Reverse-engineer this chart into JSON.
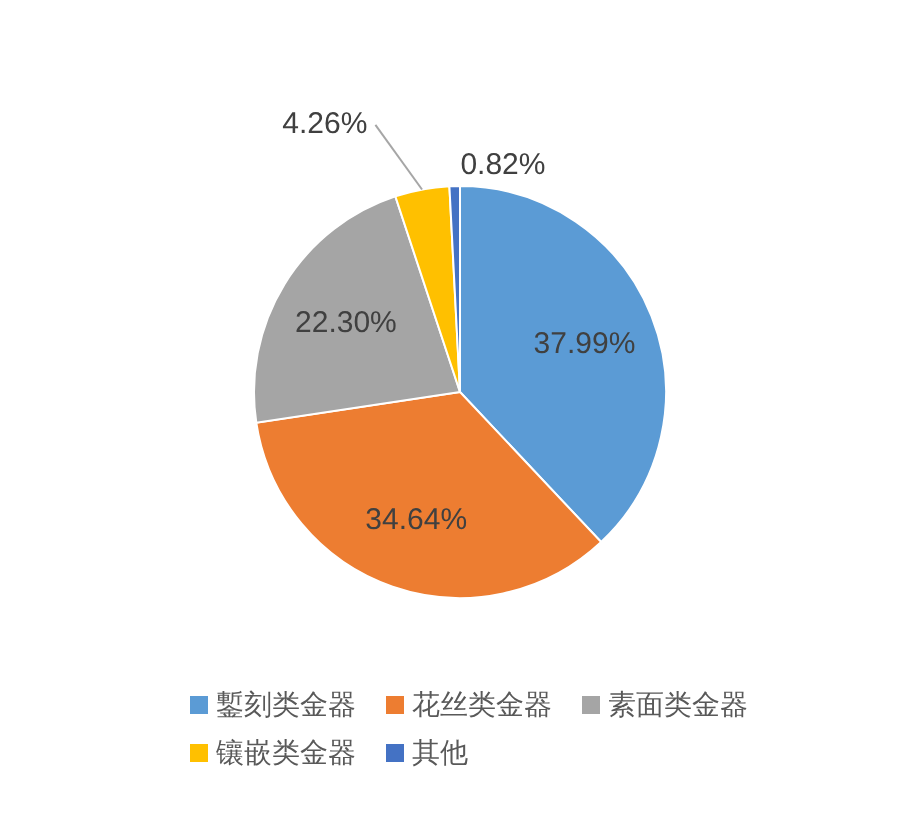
{
  "chart_data": {
    "type": "pie",
    "categories": [
      "鏨刻类金器",
      "花丝类金器",
      "素面类金器",
      "镶嵌类金器",
      "其他"
    ],
    "values": [
      37.99,
      34.64,
      22.3,
      4.26,
      0.82
    ],
    "colors": [
      "#5b9bd5",
      "#ed7d31",
      "#a5a5a5",
      "#ffc000",
      "#4472c4"
    ],
    "value_labels": [
      "37.99%",
      "34.64%",
      "22.30%",
      "4.26%",
      "0.82%"
    ],
    "legend": "bottom"
  }
}
